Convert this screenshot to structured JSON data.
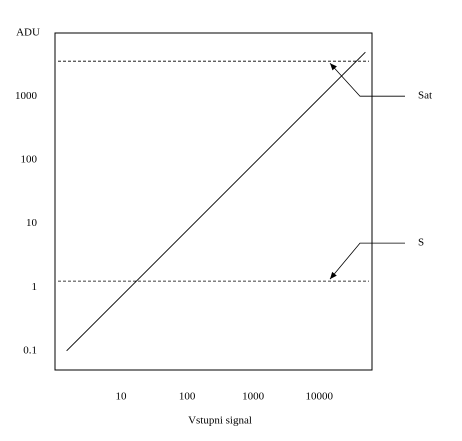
{
  "chart_data": {
    "type": "line",
    "y_label": "ADU",
    "x_label": "Vstupni signal",
    "x": [
      1.5,
      50000
    ],
    "values": [
      0.1,
      5000
    ],
    "color": "#000000",
    "log_x": true,
    "log_y": true,
    "xlim": [
      1,
      63000
    ],
    "ylim": [
      0.05,
      10000
    ],
    "xticks": [
      10,
      100,
      1000,
      10000
    ],
    "yticks": [
      0.1,
      1,
      10,
      100,
      1000
    ],
    "hlines": [
      {
        "value": 3600,
        "label": "Sat"
      },
      {
        "value": 1.25,
        "label": "S"
      }
    ]
  }
}
